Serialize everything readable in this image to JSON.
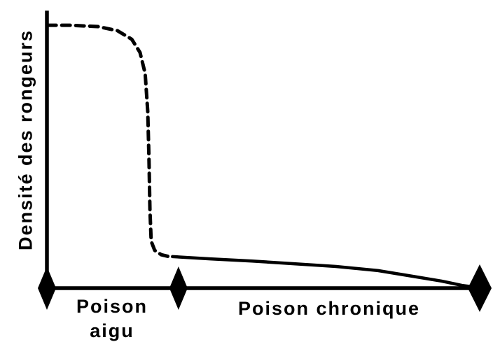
{
  "chart_data": {
    "type": "line",
    "title": "",
    "xlabel": "",
    "ylabel": "Densité des rongeurs",
    "axis_ranges": {
      "x": [
        0,
        100
      ],
      "y": [
        0,
        100
      ]
    },
    "grid": false,
    "legend": "none",
    "series": [
      {
        "name": "Poison aigu",
        "style": "dashed",
        "color": "#000000",
        "x": [
          0.2,
          5.3,
          11.8,
          16.3,
          19.6,
          21.5,
          22.7,
          23.3,
          23.6,
          23.8,
          24.1,
          24.9,
          26.4,
          28.2
        ],
        "y": [
          95.9,
          95.9,
          95.4,
          93.9,
          90.8,
          86.0,
          78.3,
          64.3,
          46.4,
          28.6,
          17.1,
          13.8,
          12.2,
          11.5
        ]
      },
      {
        "name": "Poison chronique",
        "style": "solid",
        "color": "#000000",
        "x": [
          29.0,
          37.7,
          47.4,
          57.1,
          66.8,
          76.5,
          84.6,
          91.1,
          95.9,
          99.4
        ],
        "y": [
          11.5,
          10.7,
          9.9,
          8.9,
          7.9,
          6.4,
          4.3,
          2.6,
          1.0,
          0.3
        ]
      }
    ],
    "x_markers": [
      {
        "x": 0,
        "shape": "diamond",
        "rx": 13,
        "ry": 31
      },
      {
        "x": 30.4,
        "shape": "diamond",
        "rx": 13,
        "ry": 31
      },
      {
        "x": 100,
        "shape": "diamond",
        "rx": 17,
        "ry": 34
      }
    ],
    "phase_labels": [
      {
        "text": "Poison aigu",
        "x_range": [
          0,
          30.4
        ]
      },
      {
        "text": "Poison chronique",
        "x_range": [
          30.4,
          100
        ]
      }
    ]
  },
  "labels": {
    "ylabel": "Densité des rongeurs",
    "phase1_line1": "Poison",
    "phase1_line2": "aigu",
    "phase2": "Poison chronique"
  },
  "colors": {
    "ink": "#000000",
    "background": "#ffffff"
  }
}
